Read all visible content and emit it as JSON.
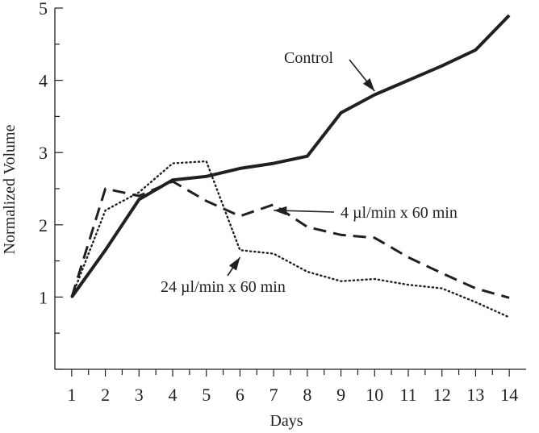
{
  "chart_data": {
    "type": "line",
    "title": "",
    "xlabel": "Days",
    "ylabel": "Normalized Volume",
    "x": [
      1,
      2,
      3,
      4,
      5,
      6,
      7,
      8,
      9,
      10,
      11,
      12,
      13,
      14
    ],
    "xlim": [
      0.5,
      14.5
    ],
    "ylim": [
      0,
      5
    ],
    "xticks": [
      "1",
      "2",
      "3",
      "4",
      "5",
      "6",
      "7",
      "8",
      "9",
      "10",
      "11",
      "12",
      "13",
      "14"
    ],
    "yticks": [
      "1",
      "2",
      "3",
      "4",
      "5"
    ],
    "grid": false,
    "legend": "none",
    "series": [
      {
        "name": "Control",
        "style": "solid",
        "points": [
          [
            1,
            1.0
          ],
          [
            2,
            1.65
          ],
          [
            3,
            2.35
          ],
          [
            4,
            2.62
          ],
          [
            5,
            2.67
          ],
          [
            6,
            2.78
          ],
          [
            7,
            2.85
          ],
          [
            8,
            2.95
          ],
          [
            9,
            3.55
          ],
          [
            10,
            3.8
          ],
          [
            11,
            4.0
          ],
          [
            12,
            4.2
          ],
          [
            13,
            4.42
          ],
          [
            14,
            4.9
          ]
        ]
      },
      {
        "name": "4 µl/min x 60 min",
        "style": "dashed",
        "points": [
          [
            1,
            1.0
          ],
          [
            2,
            2.5
          ],
          [
            3,
            2.4
          ],
          [
            4,
            2.6
          ],
          [
            5,
            2.33
          ],
          [
            6,
            2.12
          ],
          [
            7,
            2.28
          ],
          [
            8,
            1.97
          ],
          [
            9,
            1.86
          ],
          [
            10,
            1.82
          ],
          [
            11,
            1.55
          ],
          [
            12,
            1.33
          ],
          [
            13,
            1.12
          ],
          [
            14,
            0.99
          ]
        ]
      },
      {
        "name": "24 µl/min x 60 min",
        "style": "dotted",
        "points": [
          [
            1,
            1.0
          ],
          [
            2,
            2.2
          ],
          [
            3,
            2.45
          ],
          [
            4,
            2.85
          ],
          [
            5,
            2.88
          ],
          [
            6,
            1.65
          ],
          [
            7,
            1.6
          ],
          [
            8,
            1.35
          ],
          [
            9,
            1.22
          ],
          [
            10,
            1.25
          ],
          [
            11,
            1.17
          ],
          [
            12,
            1.12
          ],
          [
            13,
            0.93
          ],
          [
            14,
            0.72
          ]
        ]
      }
    ],
    "annotations": [
      {
        "text": "Control",
        "points_to": [
          10,
          3.85
        ]
      },
      {
        "text": "4 µl/min x 60 min",
        "points_to": [
          7,
          2.2
        ]
      },
      {
        "text": "24 µl/min x 60 min",
        "points_to": [
          6,
          1.55
        ]
      }
    ],
    "colors": {
      "ink": "#231f20",
      "background": "#ffffff"
    }
  }
}
